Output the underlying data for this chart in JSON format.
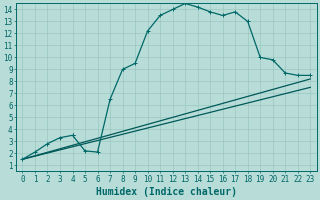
{
  "xlabel": "Humidex (Indice chaleur)",
  "xlim_min": -0.5,
  "xlim_max": 23.5,
  "ylim_min": 0.5,
  "ylim_max": 14.5,
  "xticks": [
    0,
    1,
    2,
    3,
    4,
    5,
    6,
    7,
    8,
    9,
    10,
    11,
    12,
    13,
    14,
    15,
    16,
    17,
    18,
    19,
    20,
    21,
    22,
    23
  ],
  "yticks": [
    1,
    2,
    3,
    4,
    5,
    6,
    7,
    8,
    9,
    10,
    11,
    12,
    13,
    14
  ],
  "bg_color": "#b8ddd8",
  "grid_color": "#99c8c0",
  "line_color_main": "#006868",
  "line_color_linear": "#005858",
  "curve1_x": [
    0,
    1,
    2,
    3,
    4,
    4,
    5,
    6,
    7,
    8,
    9,
    10,
    11,
    12,
    13,
    14,
    15,
    16,
    17,
    18,
    19,
    20,
    21,
    22,
    23
  ],
  "curve1_y": [
    1.5,
    2.1,
    2.8,
    3.3,
    3.5,
    3.5,
    2.2,
    2.1,
    6.5,
    9.0,
    9.5,
    12.2,
    13.5,
    14.0,
    14.5,
    14.2,
    13.8,
    13.5,
    13.8,
    13.0,
    10.0,
    9.8,
    8.7,
    8.5,
    8.5
  ],
  "curve2_x": [
    0,
    23
  ],
  "curve2_y": [
    1.5,
    8.2
  ],
  "curve3_x": [
    0,
    23
  ],
  "curve3_y": [
    1.5,
    7.5
  ],
  "markersize": 3,
  "linewidth": 0.9,
  "tick_fontsize": 5.5,
  "xlabel_fontsize": 7
}
